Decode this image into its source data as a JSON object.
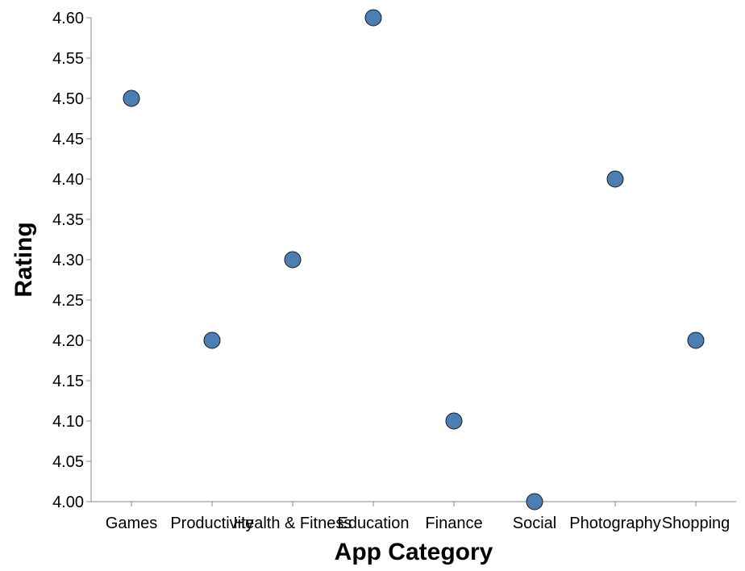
{
  "chart_data": {
    "type": "scatter",
    "xlabel": "App Category",
    "ylabel": "Rating",
    "categories": [
      "Games",
      "Productivity",
      "Health & Fitness",
      "Education",
      "Finance",
      "Social",
      "Photography",
      "Shopping"
    ],
    "values": [
      4.5,
      4.2,
      4.3,
      4.6,
      4.1,
      4.0,
      4.4,
      4.2
    ],
    "ylim": [
      4.0,
      4.6
    ],
    "y_ticks": [
      "4.00",
      "4.05",
      "4.10",
      "4.15",
      "4.20",
      "4.25",
      "4.30",
      "4.35",
      "4.40",
      "4.45",
      "4.50",
      "4.55",
      "4.60"
    ],
    "grid": false,
    "point_color": "#4c7eb3",
    "point_stroke": "#1a1a1a",
    "axis_color": "#888888"
  }
}
